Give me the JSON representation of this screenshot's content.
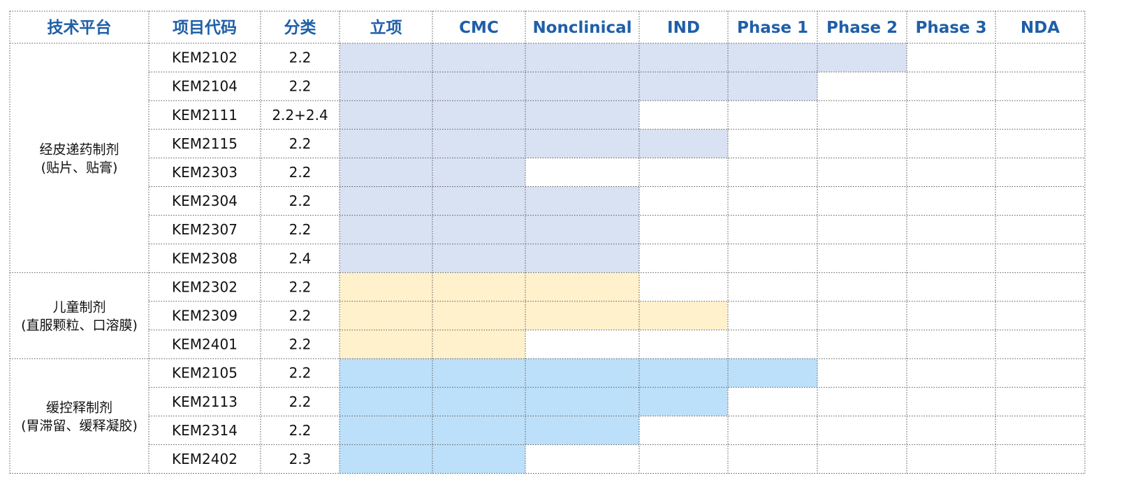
{
  "chart_data": {
    "type": "table",
    "columns": [
      "技术平台",
      "项目代码",
      "分类",
      "立项",
      "CMC",
      "Nonclinical",
      "IND",
      "Phase 1",
      "Phase 2",
      "Phase 3",
      "NDA"
    ],
    "stages": [
      "立项",
      "CMC",
      "Nonclinical",
      "IND",
      "Phase 1",
      "Phase 2",
      "Phase 3",
      "NDA"
    ],
    "platforms": [
      {
        "name_lines": [
          "经皮递药制剂",
          "(贴片、贴膏)"
        ],
        "color": "#d9e2f3",
        "projects": [
          {
            "code": "KEM2102",
            "category": "2.2",
            "stages_completed": 6
          },
          {
            "code": "KEM2104",
            "category": "2.2",
            "stages_completed": 5
          },
          {
            "code": "KEM2111",
            "category": "2.2+2.4",
            "stages_completed": 3
          },
          {
            "code": "KEM2115",
            "category": "2.2",
            "stages_completed": 4
          },
          {
            "code": "KEM2303",
            "category": "2.2",
            "stages_completed": 2
          },
          {
            "code": "KEM2304",
            "category": "2.2",
            "stages_completed": 3
          },
          {
            "code": "KEM2307",
            "category": "2.2",
            "stages_completed": 3
          },
          {
            "code": "KEM2308",
            "category": "2.4",
            "stages_completed": 3
          }
        ]
      },
      {
        "name_lines": [
          "儿童制剂",
          "(直服颗粒、口溶膜)"
        ],
        "color": "#fff1cc",
        "projects": [
          {
            "code": "KEM2302",
            "category": "2.2",
            "stages_completed": 3
          },
          {
            "code": "KEM2309",
            "category": "2.2",
            "stages_completed": 4
          },
          {
            "code": "KEM2401",
            "category": "2.2",
            "stages_completed": 2
          }
        ]
      },
      {
        "name_lines": [
          "缓控释制剂",
          "(胃滞留、缓释凝胶)"
        ],
        "color": "#bde0fa",
        "projects": [
          {
            "code": "KEM2105",
            "category": "2.2",
            "stages_completed": 5
          },
          {
            "code": "KEM2113",
            "category": "2.2",
            "stages_completed": 4
          },
          {
            "code": "KEM2314",
            "category": "2.2",
            "stages_completed": 3
          },
          {
            "code": "KEM2402",
            "category": "2.3",
            "stages_completed": 2
          }
        ]
      }
    ]
  },
  "colors": {
    "header_text": "#1f5fa8",
    "transdermal_fill": "#d9e2f3",
    "pediatric_fill": "#fff1cc",
    "controlled_release_fill": "#bde0fa"
  }
}
